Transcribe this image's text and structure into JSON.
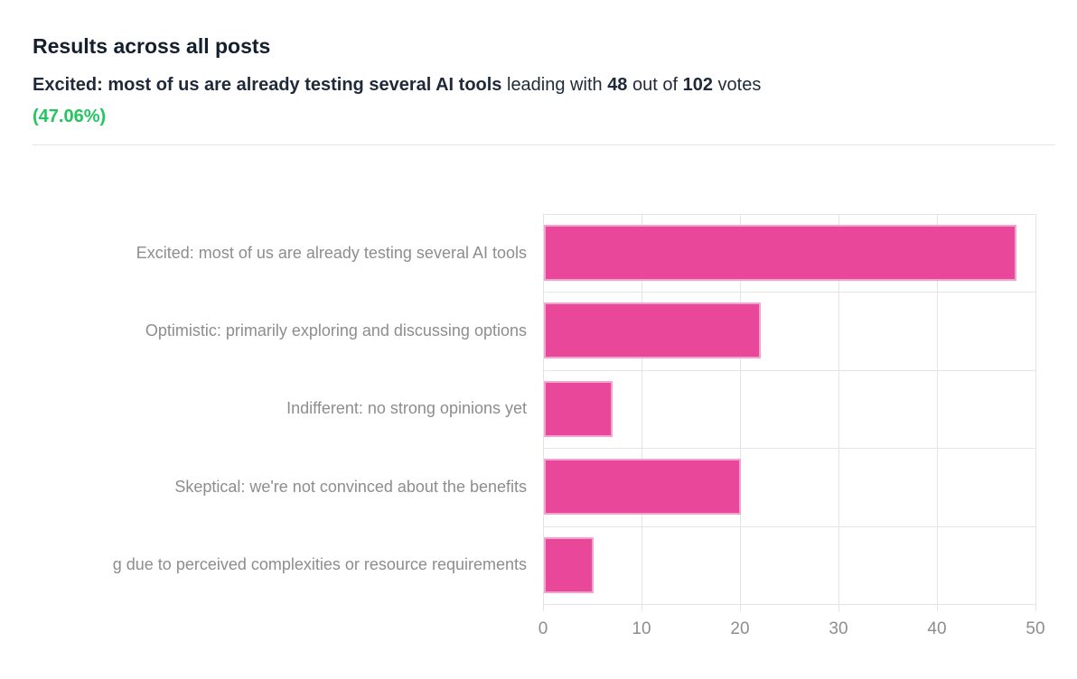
{
  "header": {
    "title": "Results across all posts",
    "subtitle": {
      "leader_bold": "Excited: most of us are already testing several AI tools",
      "text_1": " leading with ",
      "leading_votes": "48",
      "text_2": " out of ",
      "total_votes": "102",
      "text_3": " votes",
      "percentage": "(47.06%)"
    }
  },
  "colors": {
    "bar_fill": "#e9489a",
    "bar_border": "#f3a3cf",
    "accent_green": "#22c55e",
    "grid": "#e4e4e4",
    "label_gray": "#8d8d8d",
    "heading_dark": "#1e2a3a"
  },
  "chart_data": {
    "type": "bar",
    "orientation": "horizontal",
    "title": "",
    "xlabel": "",
    "ylabel": "",
    "categories": [
      "Excited: most of us are already testing several AI tools",
      "Optimistic: primarily exploring and discussing options",
      "Indifferent: no strong opinions yet",
      "Skeptical: we're not convinced about the benefits",
      "g due to perceived complexities or resource requirements"
    ],
    "values": [
      48,
      22,
      7,
      20,
      5
    ],
    "total_votes": 102,
    "xlim": [
      0,
      50
    ],
    "xticks": [
      0,
      10,
      20,
      30,
      40,
      50
    ],
    "grid": true,
    "legend": false,
    "bar_color": "#e9489a",
    "notes": "fifth category label is clipped at the left edge of the viewport"
  }
}
